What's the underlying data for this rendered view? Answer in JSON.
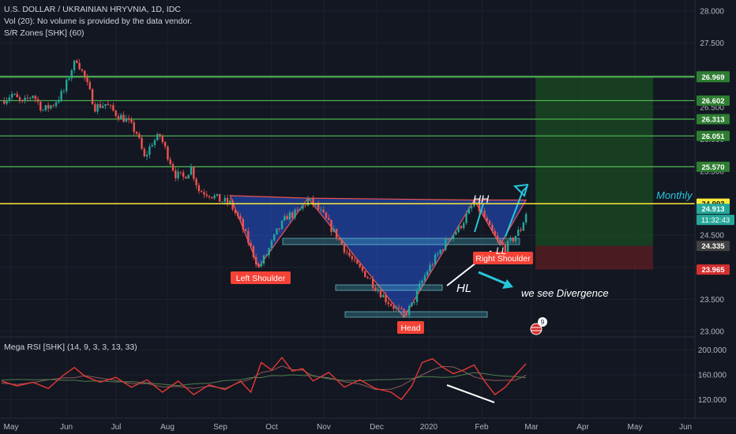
{
  "header": {
    "symbol": "U.S. DOLLAR / UKRAINIAN HRYVNIA, 1D, IDC",
    "vol": "Vol (20): No volume is provided by the data vendor.",
    "sr": "S/R Zones [SHK] (60)"
  },
  "rsi_label": "Mega RSI [SHK] (14, 9, 3, 3, 13, 33)",
  "annotations": {
    "left_shoulder": "Left Shoulder",
    "head": "Head",
    "right_shoulder": "Right Shoulder",
    "hl": "HL",
    "hh": "HH",
    "ll": "LL",
    "divergence": "we see Divergence",
    "monthly": "Monthly",
    "event_count": "9"
  },
  "colors": {
    "background": "#131722",
    "up": "#26a69a",
    "down": "#ef5350",
    "sr_line": "#4caf50",
    "monthly_line": "#ffeb3b",
    "pattern_fill": "#2962ff",
    "long_target": "#1b5e20",
    "long_stop": "#5d1f22",
    "label_red": "#f44336",
    "cyan": "#26c6da"
  },
  "chart_data": {
    "type": "candlestick",
    "title": "U.S. DOLLAR / UKRAINIAN HRYVNIA, 1D, IDC",
    "x_ticks": [
      "May",
      "Jun",
      "Jul",
      "Aug",
      "Sep",
      "Oct",
      "Nov",
      "Dec",
      "2020",
      "Feb",
      "Mar",
      "Apr",
      "May",
      "Jun"
    ],
    "price_ticks": [
      "28.000",
      "27.500",
      "27.000",
      "26.500",
      "26.000",
      "25.500",
      "25.000",
      "24.500",
      "24.000",
      "23.500",
      "23.000"
    ],
    "ylim": [
      23.0,
      28.0
    ],
    "close_path": [
      [
        0,
        26.6
      ],
      [
        4,
        26.7
      ],
      [
        8,
        26.55
      ],
      [
        12,
        26.7
      ],
      [
        16,
        26.45
      ],
      [
        20,
        26.55
      ],
      [
        24,
        26.75
      ],
      [
        27,
        27.1
      ],
      [
        29,
        27.25
      ],
      [
        32,
        26.95
      ],
      [
        36,
        26.5
      ],
      [
        40,
        26.55
      ],
      [
        44,
        26.4
      ],
      [
        48,
        26.3
      ],
      [
        52,
        26.1
      ],
      [
        55,
        25.7
      ],
      [
        58,
        25.95
      ],
      [
        61,
        26.05
      ],
      [
        64,
        25.75
      ],
      [
        67,
        25.45
      ],
      [
        70,
        25.4
      ],
      [
        73,
        25.55
      ],
      [
        76,
        25.2
      ],
      [
        80,
        25.15
      ],
      [
        84,
        25.05
      ],
      [
        88,
        25.0
      ],
      [
        92,
        24.7
      ],
      [
        96,
        24.3
      ],
      [
        99,
        24.0
      ],
      [
        102,
        24.2
      ],
      [
        106,
        24.55
      ],
      [
        110,
        24.8
      ],
      [
        114,
        24.85
      ],
      [
        118,
        25.05
      ],
      [
        121,
        24.95
      ],
      [
        124,
        24.8
      ],
      [
        128,
        24.55
      ],
      [
        132,
        24.3
      ],
      [
        136,
        24.05
      ],
      [
        140,
        23.9
      ],
      [
        144,
        23.7
      ],
      [
        148,
        23.5
      ],
      [
        152,
        23.35
      ],
      [
        155,
        23.25
      ],
      [
        158,
        23.4
      ],
      [
        161,
        23.7
      ],
      [
        164,
        23.95
      ],
      [
        168,
        24.2
      ],
      [
        172,
        24.45
      ],
      [
        176,
        24.6
      ],
      [
        179,
        24.8
      ],
      [
        182,
        25.0
      ],
      [
        185,
        24.85
      ],
      [
        188,
        24.6
      ],
      [
        191,
        24.4
      ],
      [
        194,
        24.3
      ],
      [
        197,
        24.45
      ],
      [
        200,
        24.6
      ],
      [
        202,
        24.85
      ]
    ],
    "sr_levels": [
      {
        "label": "26.981",
        "value": 26.981
      },
      {
        "label": "26.969",
        "value": 26.969
      },
      {
        "label": "26.602",
        "value": 26.602
      },
      {
        "label": "26.313",
        "value": 26.313
      },
      {
        "label": "26.051",
        "value": 26.051
      },
      {
        "label": "25.570",
        "value": 25.57
      }
    ],
    "monthly_level": {
      "label": "24.993",
      "value": 24.993
    },
    "current_price": {
      "label": "24.913",
      "value": 24.913,
      "countdown": "11:32:43"
    },
    "stop_level": {
      "label": "24.335",
      "value": 24.335
    },
    "lower_level": {
      "label": "23.965",
      "value": 23.965
    },
    "position": {
      "entry": 24.335,
      "target": 26.981,
      "stop": 23.965
    },
    "rsi": {
      "yticks": [
        "200.000",
        "160.000",
        "120.000"
      ],
      "ylim": [
        100,
        215
      ],
      "series": [
        [
          0,
          150
        ],
        [
          6,
          142
        ],
        [
          12,
          148
        ],
        [
          18,
          138
        ],
        [
          24,
          160
        ],
        [
          28,
          172
        ],
        [
          32,
          158
        ],
        [
          38,
          148
        ],
        [
          44,
          156
        ],
        [
          50,
          140
        ],
        [
          56,
          152
        ],
        [
          62,
          132
        ],
        [
          68,
          150
        ],
        [
          74,
          128
        ],
        [
          80,
          144
        ],
        [
          86,
          136
        ],
        [
          92,
          150
        ],
        [
          96,
          132
        ],
        [
          100,
          180
        ],
        [
          104,
          168
        ],
        [
          108,
          188
        ],
        [
          112,
          166
        ],
        [
          116,
          170
        ],
        [
          120,
          150
        ],
        [
          126,
          164
        ],
        [
          132,
          140
        ],
        [
          138,
          152
        ],
        [
          144,
          138
        ],
        [
          150,
          132
        ],
        [
          154,
          120
        ],
        [
          158,
          142
        ],
        [
          162,
          180
        ],
        [
          166,
          186
        ],
        [
          170,
          172
        ],
        [
          174,
          162
        ],
        [
          178,
          168
        ],
        [
          182,
          176
        ],
        [
          186,
          150
        ],
        [
          190,
          128
        ],
        [
          194,
          140
        ],
        [
          198,
          160
        ],
        [
          202,
          178
        ]
      ]
    }
  }
}
